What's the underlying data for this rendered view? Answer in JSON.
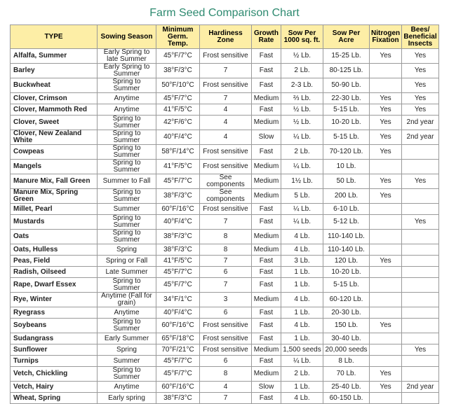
{
  "title": "Farm Seed Comparison Chart",
  "table": {
    "header": [
      "TYPE",
      "Sowing Season",
      "Minimum Germ. Temp.",
      "Hardiness Zone",
      "Growth Rate",
      "Sow Per 1000 sq. ft.",
      "Sow Per Acre",
      "Nitrogen Fixation",
      "Bees/ Beneficial Insects"
    ],
    "rows": [
      [
        "Alfalfa, Summer",
        "Early Spring to late Summer",
        "45°F/7°C",
        "Frost sensitive",
        "Fast",
        "½ Lb.",
        "15-25 Lb.",
        "Yes",
        "Yes"
      ],
      [
        "Barley",
        "Early Spring to Summer",
        "38°F/3°C",
        "7",
        "Fast",
        "2 Lb.",
        "80-125 Lb.",
        null,
        "Yes"
      ],
      [
        "Buckwheat",
        "Spring to Summer",
        "50°F/10°C",
        "Frost sensitive",
        "Fast",
        "2-3 Lb.",
        "50-90 Lb.",
        null,
        "Yes"
      ],
      [
        "Clover, Crimson",
        "Anytime",
        "45°F/7°C",
        "7",
        "Medium",
        "⅔ Lb.",
        "22-30 Lb.",
        "Yes",
        "Yes"
      ],
      [
        "Clover, Mammoth Red",
        "Anytime",
        "41°F/5°C",
        "4",
        "Fast",
        "½ Lb.",
        "5-15 Lb.",
        "Yes",
        "Yes"
      ],
      [
        "Clover, Sweet",
        "Spring to Summer",
        "42°F/6°C",
        "4",
        "Medium",
        "½ Lb.",
        "10-20 Lb.",
        "Yes",
        "2nd year"
      ],
      [
        "Clover, New Zealand White",
        "Spring to Summer",
        "40°F/4°C",
        "4",
        "Slow",
        "¼ Lb.",
        "5-15 Lb.",
        "Yes",
        "2nd year"
      ],
      [
        "Cowpeas",
        "Spring to Summer",
        "58°F/14°C",
        "Frost sensitive",
        "Fast",
        "2 Lb.",
        "70-120 Lb.",
        "Yes",
        null
      ],
      [
        "Mangels",
        "Spring to Summer",
        "41°F/5°C",
        "Frost sensitive",
        "Medium",
        "¼ Lb.",
        "10 Lb.",
        null,
        null
      ],
      [
        "Manure Mix, Fall Green",
        "Summer to Fall",
        "45°F/7°C",
        "See components",
        "Medium",
        "1½ Lb.",
        "50 Lb.",
        "Yes",
        "Yes"
      ],
      [
        "Manure Mix, Spring Green",
        "Spring to Summer",
        "38°F/3°C",
        "See components",
        "Medium",
        "5 Lb.",
        "200 Lb.",
        "Yes",
        null
      ],
      [
        "Millet, Pearl",
        "Summer",
        "60°F/16°C",
        "Frost sensitive",
        "Fast",
        "¼ Lb.",
        "6-10 Lb.",
        null,
        null
      ],
      [
        "Mustards",
        "Spring to Summer",
        "40°F/4°C",
        "7",
        "Fast",
        "¼ Lb.",
        "5-12 Lb.",
        null,
        "Yes"
      ],
      [
        "Oats",
        "Spring to Summer",
        "38°F/3°C",
        "8",
        "Medium",
        "4 Lb.",
        "110-140 Lb.",
        null,
        null
      ],
      [
        "Oats, Hulless",
        "Spring",
        "38°F/3°C",
        "8",
        "Medium",
        "4 Lb.",
        "110-140 Lb.",
        null,
        null
      ],
      [
        "Peas, Field",
        "Spring or Fall",
        "41°F/5°C",
        "7",
        "Fast",
        "3 Lb.",
        "120 Lb.",
        "Yes",
        null
      ],
      [
        "Radish, Oilseed",
        "Late Summer",
        "45°F/7°C",
        "6",
        "Fast",
        "1 Lb.",
        "10-20 Lb.",
        null,
        null
      ],
      [
        "Rape, Dwarf Essex",
        "Spring to Summer",
        "45°F/7°C",
        "7",
        "Fast",
        "1 Lb.",
        "5-15 Lb.",
        null,
        null
      ],
      [
        "Rye, Winter",
        "Anytime (Fall for grain)",
        "34°F/1°C",
        "3",
        "Medium",
        "4 Lb.",
        "60-120 Lb.",
        null,
        null
      ],
      [
        "Ryegrass",
        "Anytime",
        "40°F/4°C",
        "6",
        "Fast",
        "1 Lb.",
        "20-30 Lb.",
        null,
        null
      ],
      [
        "Soybeans",
        "Spring to Summer",
        "60°F/16°C",
        "Frost sensitive",
        "Fast",
        "4 Lb.",
        "150 Lb.",
        "Yes",
        null
      ],
      [
        "Sudangrass",
        "Early Summer",
        "65°F/18°C",
        "Frost sensitive",
        "Fast",
        "1 Lb.",
        "30-40 Lb.",
        null,
        null
      ],
      [
        "Sunflower",
        "Spring",
        "70°F/21°C",
        "Frost sensitive",
        "Medium",
        "1,500 seeds",
        "20,000 seeds",
        null,
        "Yes"
      ],
      [
        "Turnips",
        "Summer",
        "45°F/7°C",
        "6",
        "Fast",
        "¼ Lb.",
        "8 Lb.",
        null,
        null
      ],
      [
        "Vetch, Chickling",
        "Spring to Summer",
        "45°F/7°C",
        "8",
        "Medium",
        "2 Lb.",
        "70 Lb.",
        "Yes",
        null
      ],
      [
        "Vetch, Hairy",
        "Anytime",
        "60°F/16°C",
        "4",
        "Slow",
        "1 Lb.",
        "25-40 Lb.",
        "Yes",
        "2nd year"
      ],
      [
        "Wheat, Spring",
        "Early spring",
        "38°F/3°C",
        "7",
        "Fast",
        "4 Lb.",
        "60-150 Lb.",
        null,
        null
      ]
    ]
  }
}
